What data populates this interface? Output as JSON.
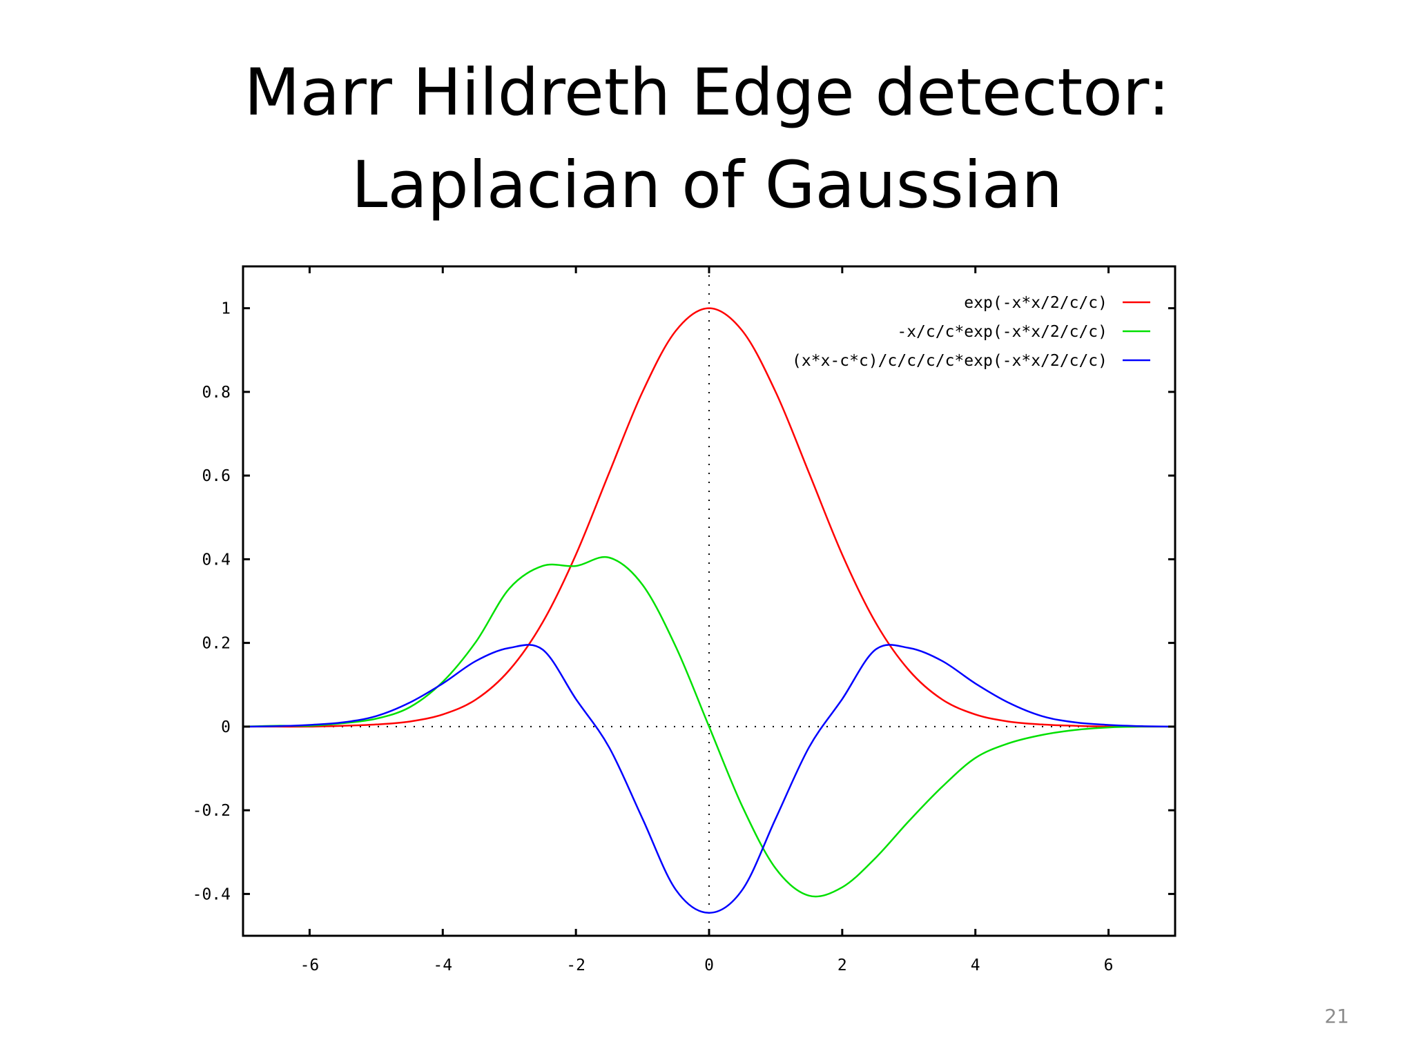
{
  "slide": {
    "title_line1": "Marr Hildreth Edge detector:",
    "title_line2": "Laplacian of Gaussian",
    "page_number": "21"
  },
  "colors": {
    "axes": "#000000",
    "zero_lines": "#000000",
    "series_1": "#ff0000",
    "series_2": "#00e000",
    "series_3": "#0000ff"
  },
  "chart_data": {
    "type": "line",
    "title": "",
    "xlabel": "",
    "ylabel": "",
    "xlim": [
      -7,
      7
    ],
    "ylim": [
      -0.5,
      1.1
    ],
    "x_ticks": [
      -6,
      -4,
      -2,
      0,
      2,
      4,
      6
    ],
    "x_tick_labels": [
      "-6",
      "-4",
      "-2",
      "0",
      "2",
      "4",
      "6"
    ],
    "y_ticks": [
      -0.4,
      -0.2,
      0,
      0.2,
      0.4,
      0.6,
      0.8,
      1
    ],
    "y_tick_labels": [
      "-0.4",
      "-0.2",
      "0",
      "0.2",
      "0.4",
      "0.6",
      "0.8",
      "1"
    ],
    "grid": false,
    "zero_axes_dotted": true,
    "legend_position": "top-right",
    "x": [
      -7,
      -6.5,
      -6,
      -5.5,
      -5,
      -4.5,
      -4,
      -3.5,
      -3,
      -2.5,
      -2,
      -1.5,
      -1,
      -0.5,
      0,
      0.5,
      1,
      1.5,
      2,
      2.5,
      3,
      3.5,
      4,
      4.5,
      5,
      5.5,
      6,
      6.5,
      7
    ],
    "series": [
      {
        "name": "exp(-x*x/2/c/c)",
        "color": "#ff0000",
        "values": [
          0.0,
          0.0,
          0.0,
          0.002,
          0.005,
          0.012,
          0.029,
          0.065,
          0.135,
          0.249,
          0.411,
          0.607,
          0.8,
          0.946,
          1.0,
          0.946,
          0.8,
          0.607,
          0.411,
          0.249,
          0.135,
          0.065,
          0.029,
          0.012,
          0.005,
          0.002,
          0.0,
          0.0,
          0.0
        ]
      },
      {
        "name": "-x/c/c*exp(-x*x/2/c/c)",
        "color": "#00e000",
        "values": [
          0.0,
          0.002,
          0.002,
          0.008,
          0.019,
          0.046,
          0.107,
          0.203,
          0.33,
          0.384,
          0.384,
          0.404,
          0.339,
          0.191,
          0.0,
          -0.191,
          -0.339,
          -0.404,
          -0.384,
          -0.314,
          -0.226,
          -0.144,
          -0.075,
          -0.04,
          -0.02,
          -0.008,
          -0.002,
          0.0,
          0.0
        ]
      },
      {
        "name": "(x*x-c*c)/c/c/c/c*exp(-x*x/2/c/c)",
        "color": "#0000ff",
        "values": [
          0.0,
          0.001,
          0.004,
          0.01,
          0.025,
          0.057,
          0.103,
          0.157,
          0.188,
          0.184,
          0.066,
          -0.05,
          -0.22,
          -0.39,
          -0.445,
          -0.39,
          -0.22,
          -0.05,
          0.066,
          0.184,
          0.188,
          0.157,
          0.103,
          0.057,
          0.025,
          0.01,
          0.004,
          0.001,
          0.0
        ]
      }
    ]
  }
}
